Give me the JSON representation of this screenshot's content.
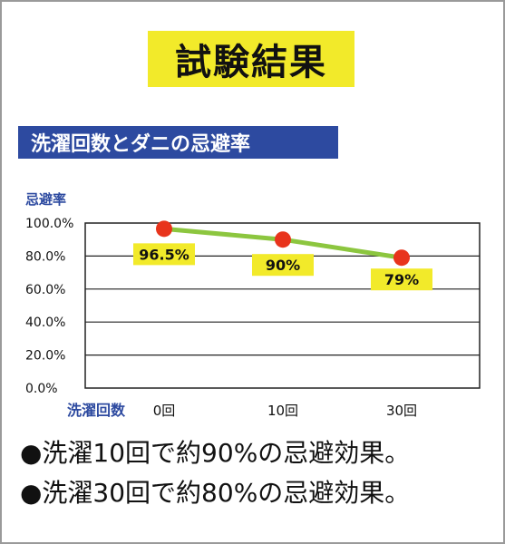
{
  "title": "試験結果",
  "subtitle": "洗濯回数とダニの忌避率",
  "chart_data": {
    "type": "line",
    "categories": [
      "0回",
      "10回",
      "30回"
    ],
    "values": [
      96.5,
      90,
      79
    ],
    "data_labels": [
      "96.5%",
      "90%",
      "79%"
    ],
    "ylabel": "忌避率",
    "xlabel": "洗濯回数",
    "ylim": [
      0,
      100
    ],
    "yticks": [
      "0.0%",
      "20.0%",
      "40.0%",
      "60.0%",
      "80.0%",
      "100.0%"
    ],
    "grid": true,
    "colors": {
      "line": "#8cc63f",
      "marker": "#e8341c",
      "label_bg": "#f2ea2a",
      "axis_label": "#2d4aa0"
    }
  },
  "bullets": [
    "●洗濯10回で約90%の忌避効果。",
    "●洗濯30回で約80%の忌避効果。"
  ]
}
